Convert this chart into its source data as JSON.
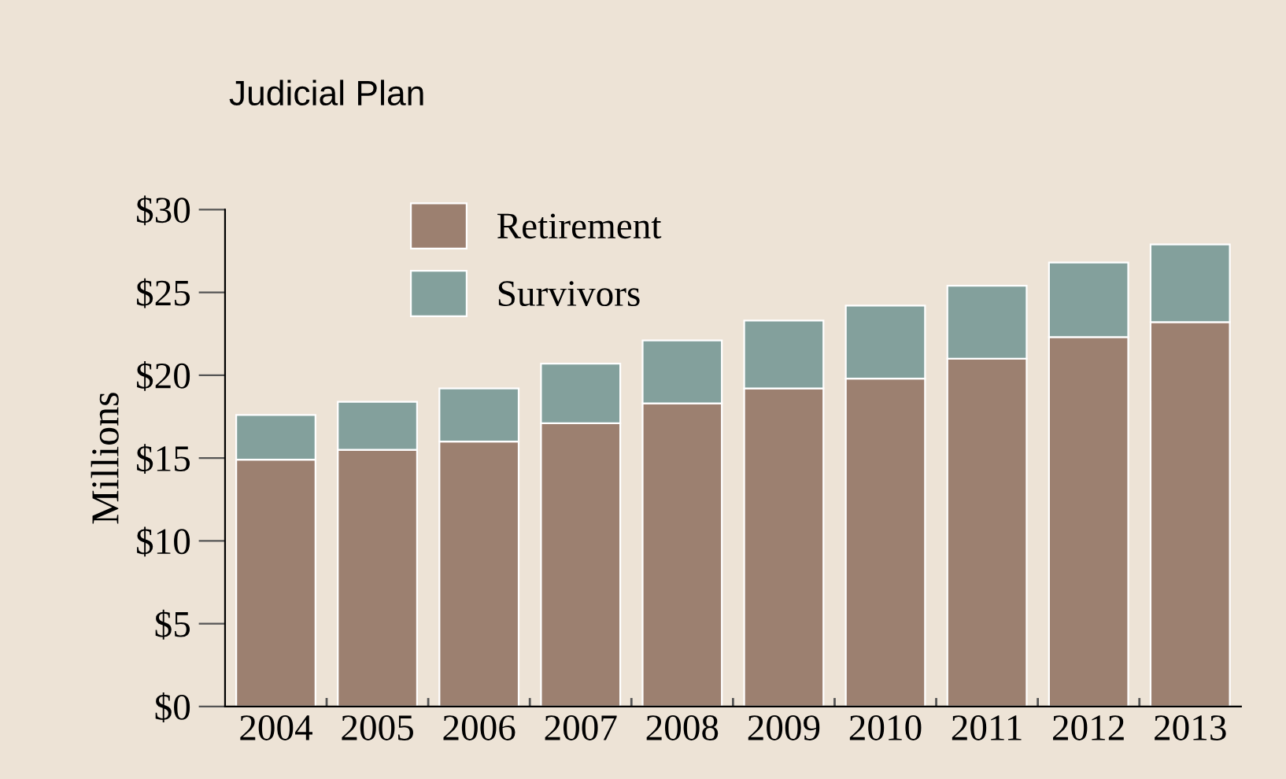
{
  "chart_data": {
    "type": "bar",
    "title": "Judicial Plan",
    "ylabel": "Millions",
    "stacked": true,
    "categories": [
      "2004",
      "2005",
      "2006",
      "2007",
      "2008",
      "2009",
      "2010",
      "2011",
      "2012",
      "2013"
    ],
    "series": [
      {
        "name": "Retirement",
        "color": "#9c8070",
        "values": [
          14.9,
          15.5,
          16.0,
          17.1,
          18.3,
          19.2,
          19.8,
          21.0,
          22.3,
          23.2
        ]
      },
      {
        "name": "Survivors",
        "color": "#83a09c",
        "values": [
          2.7,
          2.9,
          3.2,
          3.6,
          3.8,
          4.1,
          4.4,
          4.4,
          4.5,
          4.7
        ]
      }
    ],
    "ylim": [
      0,
      30
    ],
    "yticks": [
      {
        "value": 0,
        "label": "$0"
      },
      {
        "value": 5,
        "label": "$5"
      },
      {
        "value": 10,
        "label": "$10"
      },
      {
        "value": 15,
        "label": "$15"
      },
      {
        "value": 20,
        "label": "$20"
      },
      {
        "value": 25,
        "label": "$25"
      },
      {
        "value": 30,
        "label": "$30"
      }
    ],
    "grid": false,
    "legend": "top left"
  }
}
